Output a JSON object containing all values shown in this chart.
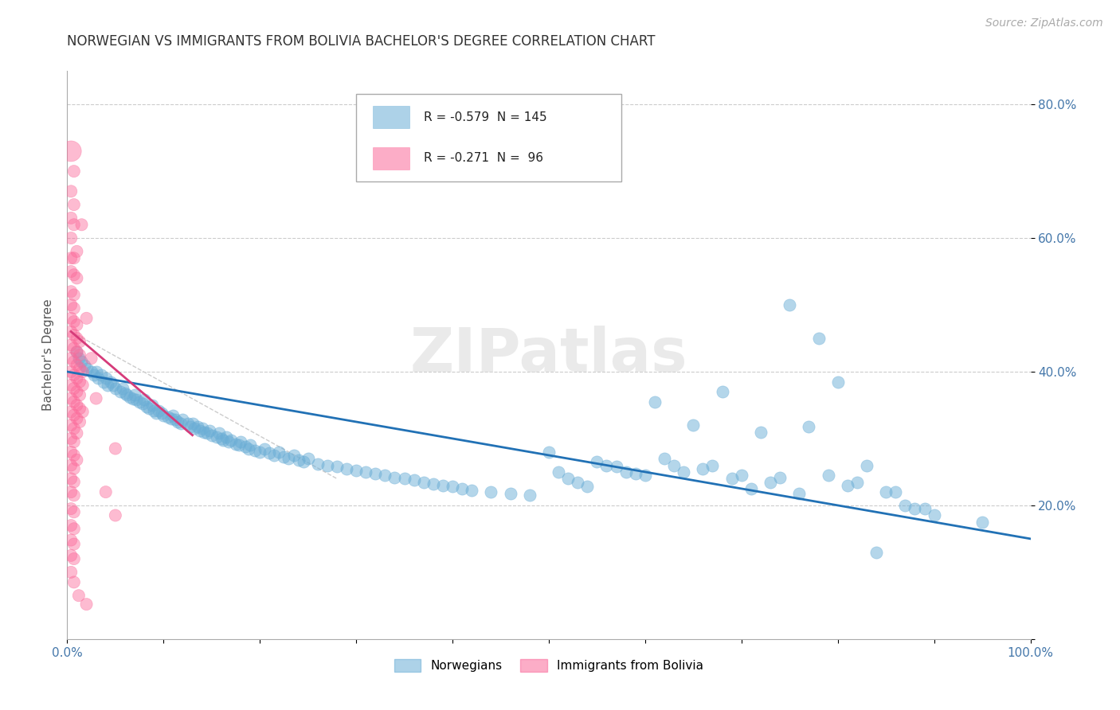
{
  "title": "NORWEGIAN VS IMMIGRANTS FROM BOLIVIA BACHELOR'S DEGREE CORRELATION CHART",
  "source": "Source: ZipAtlas.com",
  "ylabel": "Bachelor's Degree",
  "watermark": "ZIPatlas",
  "xlim": [
    0.0,
    1.0
  ],
  "ylim": [
    0.0,
    0.85
  ],
  "xticks": [
    0.0,
    0.1,
    0.2,
    0.3,
    0.4,
    0.5,
    0.6,
    0.7,
    0.8,
    0.9,
    1.0
  ],
  "xtick_labels": [
    "0.0%",
    "",
    "",
    "",
    "",
    "",
    "",
    "",
    "",
    "",
    "100.0%"
  ],
  "yticks": [
    0.0,
    0.2,
    0.4,
    0.6,
    0.8
  ],
  "ytick_labels": [
    "",
    "20.0%",
    "40.0%",
    "60.0%",
    "80.0%"
  ],
  "legend_entries": [
    {
      "color": "#6baed6",
      "R": "-0.579",
      "N": "145",
      "label": "Norwegians"
    },
    {
      "color": "#fb6a9a",
      "R": "-0.271",
      "N": " 96",
      "label": "Immigrants from Bolivia"
    }
  ],
  "norwegian_scatter": {
    "color": "#6baed6",
    "alpha": 0.5,
    "points": [
      [
        0.01,
        0.43
      ],
      [
        0.012,
        0.42
      ],
      [
        0.015,
        0.415
      ],
      [
        0.018,
        0.41
      ],
      [
        0.02,
        0.405
      ],
      [
        0.025,
        0.4
      ],
      [
        0.028,
        0.395
      ],
      [
        0.03,
        0.4
      ],
      [
        0.032,
        0.39
      ],
      [
        0.035,
        0.395
      ],
      [
        0.038,
        0.385
      ],
      [
        0.04,
        0.39
      ],
      [
        0.042,
        0.38
      ],
      [
        0.045,
        0.385
      ],
      [
        0.048,
        0.38
      ],
      [
        0.05,
        0.375
      ],
      [
        0.055,
        0.37
      ],
      [
        0.058,
        0.375
      ],
      [
        0.06,
        0.368
      ],
      [
        0.062,
        0.365
      ],
      [
        0.065,
        0.362
      ],
      [
        0.068,
        0.36
      ],
      [
        0.07,
        0.365
      ],
      [
        0.072,
        0.358
      ],
      [
        0.075,
        0.355
      ],
      [
        0.078,
        0.352
      ],
      [
        0.08,
        0.358
      ],
      [
        0.082,
        0.348
      ],
      [
        0.085,
        0.345
      ],
      [
        0.088,
        0.35
      ],
      [
        0.09,
        0.342
      ],
      [
        0.092,
        0.338
      ],
      [
        0.095,
        0.342
      ],
      [
        0.098,
        0.338
      ],
      [
        0.1,
        0.335
      ],
      [
        0.105,
        0.332
      ],
      [
        0.108,
        0.33
      ],
      [
        0.11,
        0.335
      ],
      [
        0.112,
        0.328
      ],
      [
        0.115,
        0.325
      ],
      [
        0.118,
        0.322
      ],
      [
        0.12,
        0.328
      ],
      [
        0.125,
        0.322
      ],
      [
        0.128,
        0.318
      ],
      [
        0.13,
        0.322
      ],
      [
        0.132,
        0.315
      ],
      [
        0.135,
        0.318
      ],
      [
        0.138,
        0.312
      ],
      [
        0.14,
        0.315
      ],
      [
        0.142,
        0.31
      ],
      [
        0.145,
        0.308
      ],
      [
        0.148,
        0.312
      ],
      [
        0.15,
        0.305
      ],
      [
        0.155,
        0.302
      ],
      [
        0.158,
        0.308
      ],
      [
        0.16,
        0.3
      ],
      [
        0.162,
        0.298
      ],
      [
        0.165,
        0.302
      ],
      [
        0.168,
        0.295
      ],
      [
        0.17,
        0.298
      ],
      [
        0.175,
        0.292
      ],
      [
        0.178,
        0.29
      ],
      [
        0.18,
        0.295
      ],
      [
        0.185,
        0.288
      ],
      [
        0.188,
        0.285
      ],
      [
        0.19,
        0.29
      ],
      [
        0.195,
        0.282
      ],
      [
        0.2,
        0.28
      ],
      [
        0.205,
        0.285
      ],
      [
        0.21,
        0.278
      ],
      [
        0.215,
        0.275
      ],
      [
        0.22,
        0.28
      ],
      [
        0.225,
        0.272
      ],
      [
        0.23,
        0.27
      ],
      [
        0.235,
        0.275
      ],
      [
        0.24,
        0.268
      ],
      [
        0.245,
        0.265
      ],
      [
        0.25,
        0.27
      ],
      [
        0.26,
        0.262
      ],
      [
        0.27,
        0.26
      ],
      [
        0.28,
        0.258
      ],
      [
        0.29,
        0.255
      ],
      [
        0.3,
        0.252
      ],
      [
        0.31,
        0.25
      ],
      [
        0.32,
        0.248
      ],
      [
        0.33,
        0.245
      ],
      [
        0.34,
        0.242
      ],
      [
        0.35,
        0.24
      ],
      [
        0.36,
        0.238
      ],
      [
        0.37,
        0.235
      ],
      [
        0.38,
        0.232
      ],
      [
        0.39,
        0.23
      ],
      [
        0.4,
        0.228
      ],
      [
        0.41,
        0.225
      ],
      [
        0.42,
        0.222
      ],
      [
        0.44,
        0.22
      ],
      [
        0.46,
        0.218
      ],
      [
        0.48,
        0.215
      ],
      [
        0.5,
        0.28
      ],
      [
        0.51,
        0.25
      ],
      [
        0.52,
        0.24
      ],
      [
        0.53,
        0.235
      ],
      [
        0.54,
        0.228
      ],
      [
        0.55,
        0.265
      ],
      [
        0.56,
        0.26
      ],
      [
        0.57,
        0.258
      ],
      [
        0.58,
        0.25
      ],
      [
        0.59,
        0.248
      ],
      [
        0.6,
        0.245
      ],
      [
        0.61,
        0.355
      ],
      [
        0.62,
        0.27
      ],
      [
        0.63,
        0.26
      ],
      [
        0.64,
        0.25
      ],
      [
        0.65,
        0.32
      ],
      [
        0.66,
        0.255
      ],
      [
        0.67,
        0.26
      ],
      [
        0.68,
        0.37
      ],
      [
        0.69,
        0.24
      ],
      [
        0.7,
        0.245
      ],
      [
        0.71,
        0.225
      ],
      [
        0.72,
        0.31
      ],
      [
        0.73,
        0.235
      ],
      [
        0.74,
        0.242
      ],
      [
        0.75,
        0.5
      ],
      [
        0.76,
        0.218
      ],
      [
        0.77,
        0.318
      ],
      [
        0.78,
        0.45
      ],
      [
        0.79,
        0.245
      ],
      [
        0.8,
        0.385
      ],
      [
        0.81,
        0.23
      ],
      [
        0.82,
        0.235
      ],
      [
        0.83,
        0.26
      ],
      [
        0.84,
        0.13
      ],
      [
        0.85,
        0.22
      ],
      [
        0.86,
        0.22
      ],
      [
        0.87,
        0.2
      ],
      [
        0.88,
        0.195
      ],
      [
        0.89,
        0.195
      ],
      [
        0.9,
        0.185
      ],
      [
        0.95,
        0.175
      ]
    ]
  },
  "bolivia_scatter": {
    "color": "#fb6a9a",
    "alpha": 0.45,
    "points": [
      [
        0.004,
        0.73
      ],
      [
        0.007,
        0.7
      ],
      [
        0.004,
        0.67
      ],
      [
        0.007,
        0.65
      ],
      [
        0.004,
        0.63
      ],
      [
        0.007,
        0.62
      ],
      [
        0.004,
        0.6
      ],
      [
        0.004,
        0.57
      ],
      [
        0.007,
        0.57
      ],
      [
        0.004,
        0.55
      ],
      [
        0.007,
        0.545
      ],
      [
        0.01,
        0.54
      ],
      [
        0.004,
        0.52
      ],
      [
        0.007,
        0.515
      ],
      [
        0.004,
        0.5
      ],
      [
        0.007,
        0.495
      ],
      [
        0.004,
        0.48
      ],
      [
        0.007,
        0.475
      ],
      [
        0.01,
        0.47
      ],
      [
        0.004,
        0.46
      ],
      [
        0.007,
        0.455
      ],
      [
        0.01,
        0.45
      ],
      [
        0.013,
        0.445
      ],
      [
        0.004,
        0.44
      ],
      [
        0.007,
        0.435
      ],
      [
        0.01,
        0.43
      ],
      [
        0.013,
        0.425
      ],
      [
        0.004,
        0.42
      ],
      [
        0.007,
        0.415
      ],
      [
        0.01,
        0.41
      ],
      [
        0.013,
        0.405
      ],
      [
        0.016,
        0.4
      ],
      [
        0.004,
        0.4
      ],
      [
        0.007,
        0.395
      ],
      [
        0.01,
        0.39
      ],
      [
        0.013,
        0.385
      ],
      [
        0.016,
        0.38
      ],
      [
        0.004,
        0.38
      ],
      [
        0.007,
        0.375
      ],
      [
        0.01,
        0.37
      ],
      [
        0.013,
        0.365
      ],
      [
        0.004,
        0.36
      ],
      [
        0.007,
        0.355
      ],
      [
        0.01,
        0.35
      ],
      [
        0.013,
        0.345
      ],
      [
        0.016,
        0.34
      ],
      [
        0.004,
        0.34
      ],
      [
        0.007,
        0.335
      ],
      [
        0.01,
        0.33
      ],
      [
        0.013,
        0.325
      ],
      [
        0.004,
        0.32
      ],
      [
        0.007,
        0.315
      ],
      [
        0.01,
        0.308
      ],
      [
        0.004,
        0.3
      ],
      [
        0.007,
        0.295
      ],
      [
        0.004,
        0.28
      ],
      [
        0.007,
        0.275
      ],
      [
        0.01,
        0.268
      ],
      [
        0.004,
        0.26
      ],
      [
        0.007,
        0.255
      ],
      [
        0.004,
        0.24
      ],
      [
        0.007,
        0.235
      ],
      [
        0.004,
        0.22
      ],
      [
        0.007,
        0.215
      ],
      [
        0.004,
        0.195
      ],
      [
        0.007,
        0.19
      ],
      [
        0.004,
        0.17
      ],
      [
        0.007,
        0.165
      ],
      [
        0.004,
        0.148
      ],
      [
        0.007,
        0.142
      ],
      [
        0.004,
        0.125
      ],
      [
        0.007,
        0.12
      ],
      [
        0.04,
        0.22
      ],
      [
        0.05,
        0.185
      ],
      [
        0.004,
        0.1
      ],
      [
        0.007,
        0.085
      ],
      [
        0.012,
        0.065
      ],
      [
        0.02,
        0.052
      ],
      [
        0.01,
        0.58
      ],
      [
        0.015,
        0.62
      ],
      [
        0.02,
        0.48
      ],
      [
        0.025,
        0.42
      ],
      [
        0.03,
        0.36
      ],
      [
        0.05,
        0.285
      ]
    ]
  },
  "norwegian_trendline": {
    "color": "#2171b5",
    "x": [
      0.0,
      1.0
    ],
    "y": [
      0.4,
      0.15
    ],
    "linewidth": 2.0
  },
  "bolivia_trendline_solid": {
    "color": "#d63b7a",
    "x": [
      0.004,
      0.13
    ],
    "y": [
      0.46,
      0.305
    ],
    "linewidth": 2.0
  },
  "bolivia_trendline_dashed": {
    "color": "#cccccc",
    "x": [
      0.004,
      0.28
    ],
    "y": [
      0.46,
      0.24
    ],
    "linewidth": 1.0
  },
  "grid_color": "#cccccc",
  "title_color": "#333333",
  "axis_color": "#4477aa",
  "bg_color": "#ffffff",
  "title_fontsize": 12,
  "axis_label_fontsize": 11,
  "tick_label_fontsize": 11,
  "source_fontsize": 10
}
